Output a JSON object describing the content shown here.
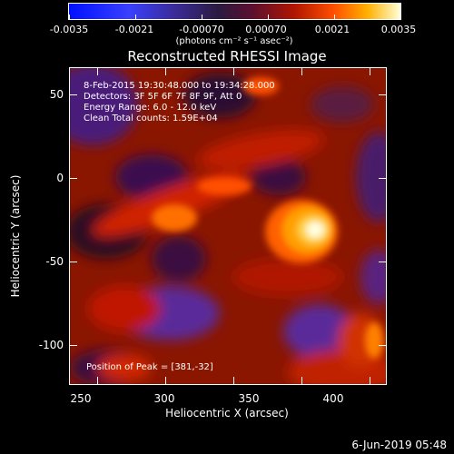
{
  "colorbar": {
    "ticks": [
      "-0.0035",
      "-0.0021",
      "-0.00070",
      "0.00070",
      "0.0021",
      "0.0035"
    ],
    "units": "(photons cm⁻² s⁻¹ asec⁻²)"
  },
  "title": "Reconstructed RHESSI Image",
  "annotations": {
    "time_range": "8-Feb-2015 19:30:48.000 to 19:34:28.000",
    "detectors": "Detectors: 3F 5F 6F 7F 8F 9F, Att 0",
    "energy": "Energy Range: 6.0 - 12.0 keV",
    "clean": "Clean    Total counts: 1.59E+04",
    "peak": "Position of Peak = [381,-32]"
  },
  "axes": {
    "x_ticks": [
      "250",
      "300",
      "350",
      "400"
    ],
    "y_ticks": [
      "50",
      "0",
      "-50",
      "-100"
    ],
    "x_title": "Heliocentric X (arcsec)",
    "y_title": "Heliocentric Y (arcsec)"
  },
  "footer_date": "6-Jun-2019 05:48"
}
